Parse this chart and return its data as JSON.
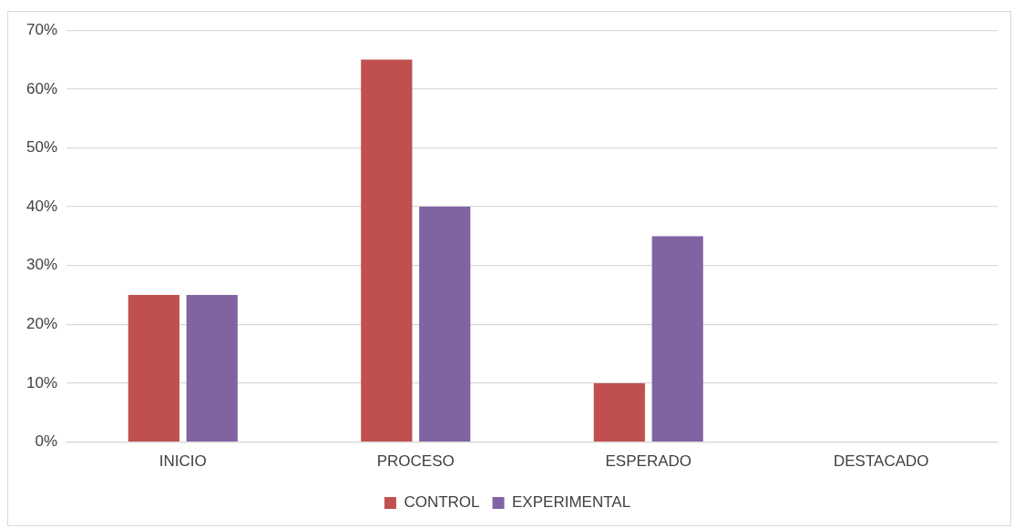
{
  "chart_data": {
    "type": "bar",
    "categories": [
      "INICIO",
      "PROCESO",
      "ESPERADO",
      "DESTACADO"
    ],
    "series": [
      {
        "name": "CONTROL",
        "color": "#c0504d",
        "values": [
          25,
          65,
          10,
          0
        ]
      },
      {
        "name": "EXPERIMENTAL",
        "color": "#8064a2",
        "values": [
          25,
          40,
          35,
          0
        ]
      }
    ],
    "ylim": [
      0,
      70
    ],
    "yticks": [
      {
        "value": 0,
        "label": "0%"
      },
      {
        "value": 10,
        "label": "10%"
      },
      {
        "value": 20,
        "label": "20%"
      },
      {
        "value": 30,
        "label": "30%"
      },
      {
        "value": 40,
        "label": "40%"
      },
      {
        "value": 50,
        "label": "50%"
      },
      {
        "value": 60,
        "label": "60%"
      },
      {
        "value": 70,
        "label": "70%"
      }
    ],
    "grid": "y",
    "legend": "bottom"
  }
}
